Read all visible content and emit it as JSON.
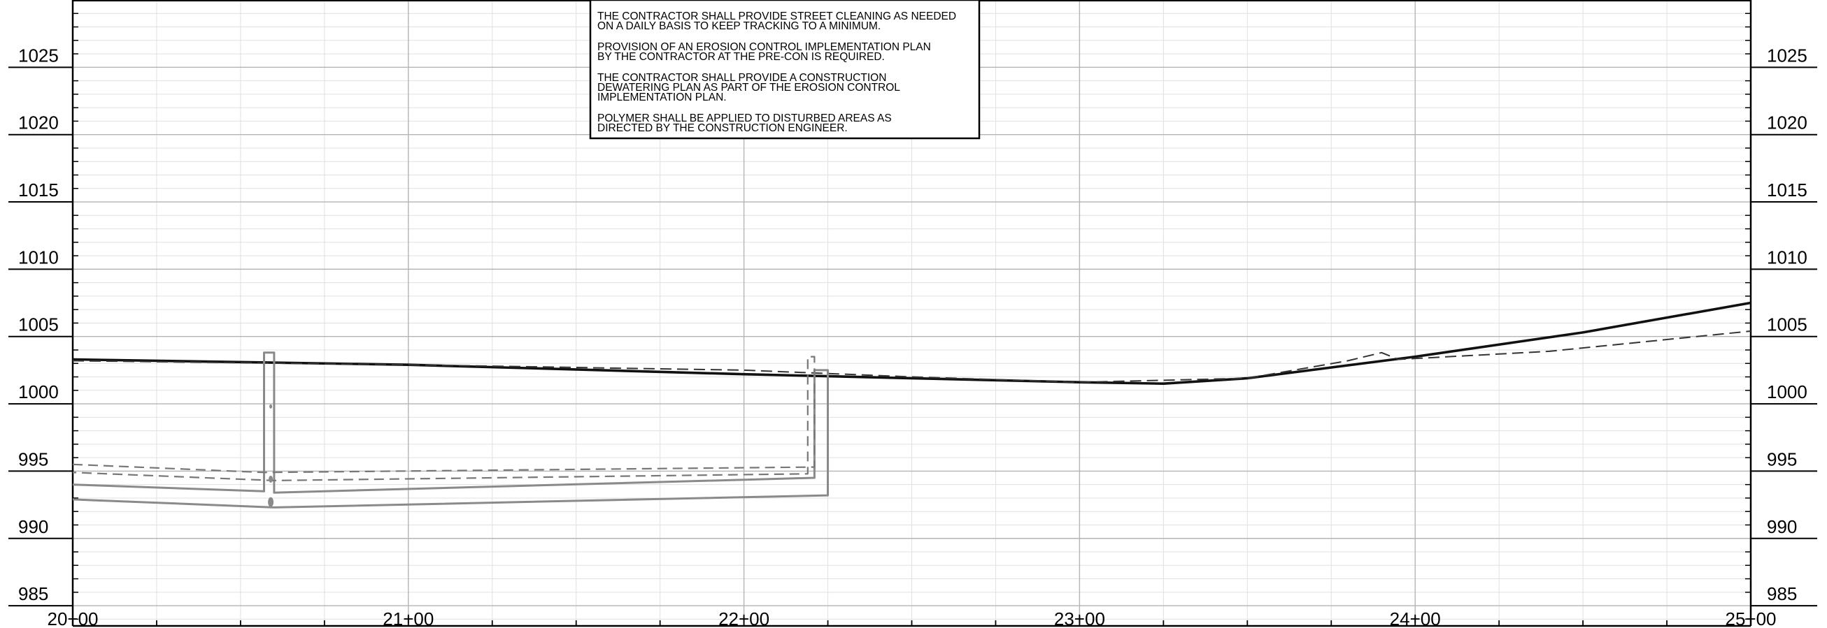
{
  "profile": {
    "elevations": [
      985,
      990,
      995,
      1000,
      1005,
      1010,
      1015,
      1020,
      1025
    ],
    "stations": [
      "20+00",
      "21+00",
      "22+00",
      "23+00",
      "24+00",
      "25+00"
    ],
    "station_range_ft": [
      2000,
      2500
    ],
    "elevation_range_ft": [
      983.5,
      1030
    ]
  },
  "notes": {
    "paragraphs": [
      [
        "THE CONTRACTOR SHALL PROVIDE STREET CLEANING AS NEEDED",
        "ON A DAILY BASIS TO KEEP TRACKING TO A MINIMUM."
      ],
      [
        "PROVISION OF AN EROSION CONTROL IMPLEMENTATION PLAN",
        "BY THE CONTRACTOR AT THE PRE-CON IS REQUIRED."
      ],
      [
        "THE CONTRACTOR SHALL PROVIDE A CONSTRUCTION",
        "DEWATERING PLAN AS PART OF THE EROSION CONTROL",
        "IMPLEMENTATION PLAN."
      ],
      [
        "POLYMER SHALL BE APPLIED TO DISTURBED AREAS AS",
        "DIRECTED BY THE CONSTRUCTION ENGINEER."
      ]
    ]
  },
  "colors": {
    "proposed_grade": "#111111",
    "existing_grade": "#333333",
    "utility": "#8a8a8a",
    "utility_existing": "#777777",
    "grid_major": "#b4b4b4",
    "grid_minor": "#e0e0e0"
  },
  "chart_data": {
    "type": "line",
    "xlabel": "",
    "ylabel": "",
    "x_tick_labels": [
      "20+00",
      "21+00",
      "22+00",
      "23+00",
      "24+00",
      "25+00"
    ],
    "xlim": [
      2000,
      2500
    ],
    "ylim": [
      983.5,
      1030
    ],
    "y_ticks": [
      985,
      990,
      995,
      1000,
      1005,
      1010,
      1015,
      1020,
      1025
    ],
    "grid": true,
    "series": [
      {
        "style": "solid-bold",
        "x": [
          2000,
          2100,
          2200,
          2300,
          2325,
          2350,
          2400,
          2450,
          2500
        ],
        "y": [
          1003.3,
          1002.9,
          1002.2,
          1001.6,
          1001.5,
          1001.9,
          1003.5,
          1005.3,
          1007.5
        ]
      },
      {
        "style": "dashed",
        "x": [
          2000,
          2100,
          2200,
          2250,
          2300,
          2350,
          2380,
          2390,
          2395,
          2440,
          2550
        ],
        "y": [
          1003.2,
          1002.9,
          1002.5,
          1002.0,
          1001.6,
          1001.9,
          1003.2,
          1003.8,
          1003.3,
          1003.9,
          1005.4
        ]
      },
      {
        "style": "utility-solid",
        "x": [
          2000,
          2057,
          2057,
          2060,
          2060,
          2221,
          2221,
          2225,
          2225,
          2060,
          2000
        ],
        "y": [
          994.0,
          993.5,
          1003.8,
          1003.8,
          993.4,
          994.5,
          1002.5,
          1002.5,
          993.2,
          992.3,
          992.9
        ]
      },
      {
        "style": "utility-dashed",
        "x": [
          2000,
          2057,
          2221,
          2221,
          2219,
          2219,
          2060,
          2000
        ],
        "y": [
          995.5,
          994.9,
          995.3,
          1003.5,
          1003.5,
          994.8,
          994.3,
          994.9
        ]
      }
    ]
  }
}
